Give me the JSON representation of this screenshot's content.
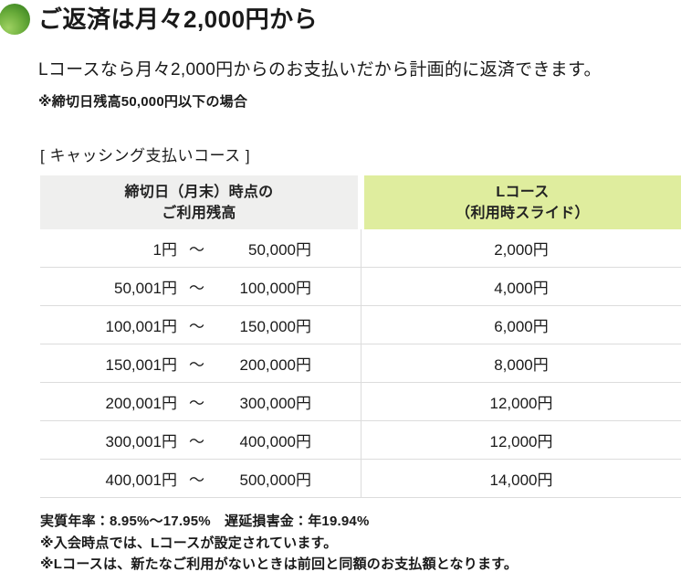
{
  "header": {
    "title": "ご返済は月々2,000円から",
    "description": "Lコースなら月々2,000円からのお支払いだから計画的に返済できます。",
    "note": "※締切日残高50,000円以下の場合",
    "bullet_color_light": "#9ed162",
    "bullet_color_dark": "#2e7a1b"
  },
  "table": {
    "caption": "[ キャッシング支払いコース ]",
    "header_left_bg": "#efefee",
    "header_right_bg": "#dfed9e",
    "border_color": "#dcdcdc",
    "columns": {
      "balance": {
        "line1": "締切日（月末）時点の",
        "line2": "ご利用残高"
      },
      "course": {
        "line1": "Lコース",
        "line2": "（利用時スライド）"
      }
    },
    "rows": [
      {
        "from": "1円",
        "tilde": "～",
        "to": "50,000円",
        "payment": "2,000円"
      },
      {
        "from": "50,001円",
        "tilde": "～",
        "to": "100,000円",
        "payment": "4,000円"
      },
      {
        "from": "100,001円",
        "tilde": "～",
        "to": "150,000円",
        "payment": "6,000円"
      },
      {
        "from": "150,001円",
        "tilde": "～",
        "to": "200,000円",
        "payment": "8,000円"
      },
      {
        "from": "200,001円",
        "tilde": "～",
        "to": "300,000円",
        "payment": "12,000円"
      },
      {
        "from": "300,001円",
        "tilde": "～",
        "to": "400,000円",
        "payment": "12,000円"
      },
      {
        "from": "400,001円",
        "tilde": "～",
        "to": "500,000円",
        "payment": "14,000円"
      }
    ]
  },
  "footer": {
    "notes": [
      "実質年率：8.95%～17.95%　遅延損害金：年19.94%",
      "※入会時点では、Lコースが設定されています。",
      "※Lコースは、新たなご利用がないときは前回と同額のお支払額となります。"
    ]
  }
}
